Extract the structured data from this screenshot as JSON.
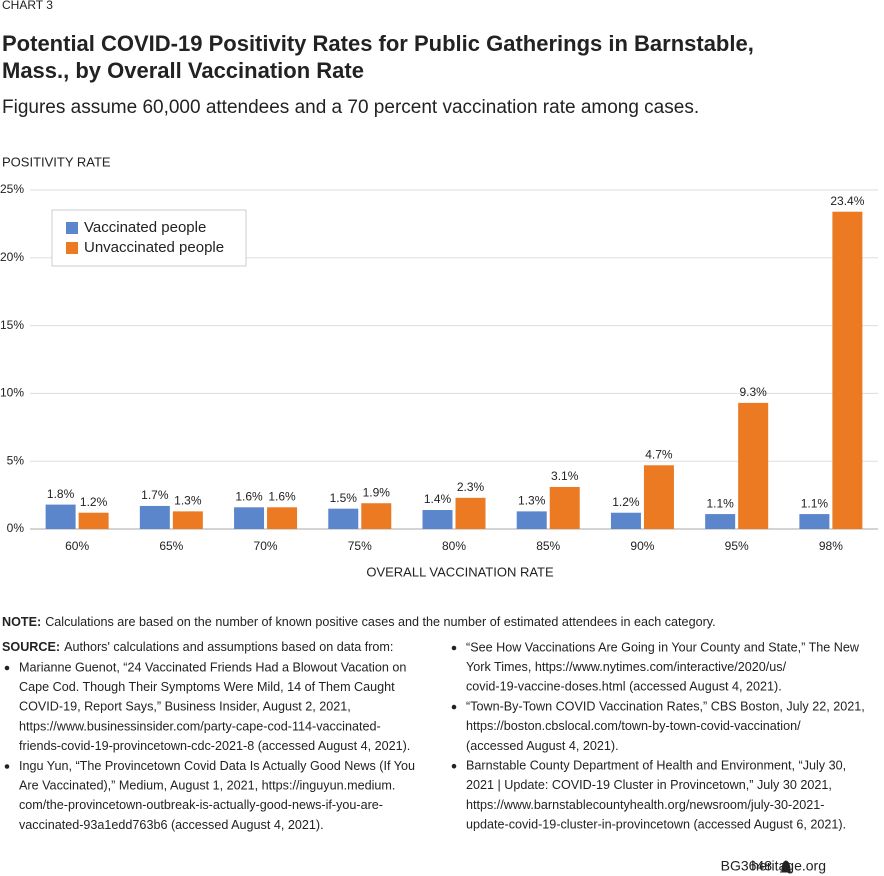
{
  "chart_data": {
    "type": "bar",
    "chart_label": "CHART 3",
    "title": [
      "Potential COVID-19 Positivity Rates for Public Gatherings in Barnstable,",
      "Mass., by Overall Vaccination Rate"
    ],
    "subtitle": "Figures assume 60,000 attendees and a 70 percent vaccination rate among cases.",
    "y_axis_label": "POSITIVITY RATE",
    "x_axis_label": "OVERALL VACCINATION RATE",
    "categories": [
      "60%",
      "65%",
      "70%",
      "75%",
      "80%",
      "85%",
      "90%",
      "95%",
      "98%"
    ],
    "series": [
      {
        "name": "Vaccinated people",
        "color": "#5b86cc",
        "values": [
          1.8,
          1.7,
          1.6,
          1.5,
          1.4,
          1.3,
          1.2,
          1.1,
          1.1
        ],
        "value_labels": [
          "1.8%",
          "1.7%",
          "1.6%",
          "1.5%",
          "1.4%",
          "1.3%",
          "1.2%",
          "1.1%",
          "1.1%"
        ]
      },
      {
        "name": "Unvaccinated people",
        "color": "#ec7a23",
        "values": [
          1.2,
          1.3,
          1.6,
          1.9,
          2.3,
          3.1,
          4.7,
          9.3,
          23.4
        ],
        "value_labels": [
          "1.2%",
          "1.3%",
          "1.6%",
          "1.9%",
          "2.3%",
          "3.1%",
          "4.7%",
          "9.3%",
          "23.4%"
        ]
      }
    ],
    "ylim": [
      0,
      25
    ],
    "yticks": [
      {
        "value": 0,
        "label": "0%"
      },
      {
        "value": 5,
        "label": "5%"
      },
      {
        "value": 10,
        "label": "10%"
      },
      {
        "value": 15,
        "label": "15%"
      },
      {
        "value": 20,
        "label": "20%"
      },
      {
        "value": 25,
        "label": "25%"
      }
    ],
    "grid": true,
    "legend": "upper left"
  },
  "notes": {
    "note": {
      "label": "NOTE:",
      "text": "Calculations are based on the number of known positive cases and the number of estimated attendees in each category."
    },
    "source": {
      "label": "SOURCE:",
      "text": "Authors' calculations and assumptions based on data from:"
    },
    "left_sources": [
      [
        "Marianne Guenot, “24 Vaccinated Friends Had a Blowout Vacation on",
        "Cape Cod. Though Their Symptoms Were Mild, 14 of Them Caught",
        "COVID-19, Report Says,” Business Insider, August 2, 2021,",
        "https://www.businessinsider.com/party-cape-cod-114-vaccinated-",
        "friends-covid-19-provincetown-cdc-2021-8 (accessed August 4, 2021)."
      ],
      [
        "Ingu Yun, “The Provincetown Covid Data Is Actually Good News (If You",
        "Are Vaccinated),” Medium, August 1, 2021, https://inguyun.medium.",
        "com/the-provincetown-outbreak-is-actually-good-news-if-you-are-",
        "vaccinated-93a1edd763b6 (accessed August 4, 2021)."
      ]
    ],
    "right_sources": [
      [
        "“See How Vaccinations Are Going in Your County and State,” The New",
        "York Times, https://www.nytimes.com/interactive/2020/us/",
        "covid-19-vaccine-doses.html (accessed August 4, 2021)."
      ],
      [
        "“Town-By-Town COVID Vaccination Rates,” CBS Boston, July 22, 2021,",
        "https://boston.cbslocal.com/town-by-town-covid-vaccination/",
        "(accessed August 4, 2021)."
      ],
      [
        "Barnstable County Department of Health and Environment, “July 30,",
        "2021 | Update: COVID-19 Cluster in Provincetown,” July 30 2021,",
        "https://www.barnstablecountyhealth.org/newsroom/july-30-2021-",
        "update-covid-19-cluster-in-provincetown (accessed August 6, 2021)."
      ]
    ]
  },
  "footer": {
    "code": "BG3648",
    "site": "heritage.org"
  }
}
